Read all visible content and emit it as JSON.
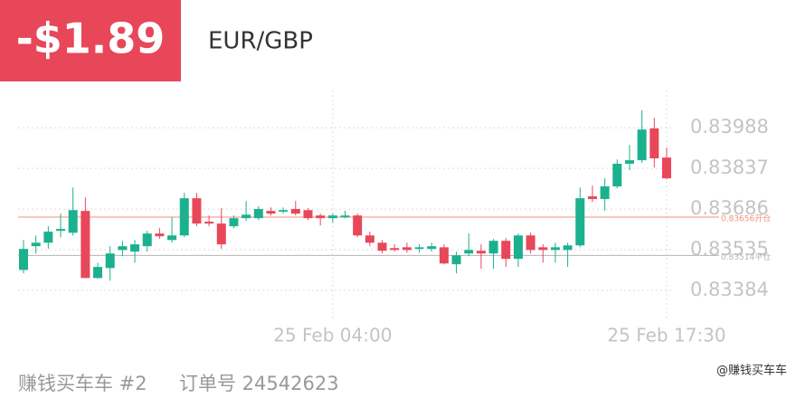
{
  "header": {
    "pnl": "-$1.89",
    "symbol": "EUR/GBP"
  },
  "chart_data": {
    "type": "candlestick",
    "categories": [
      null,
      null,
      null,
      null,
      null,
      null,
      null,
      null,
      null,
      null,
      null,
      null,
      null,
      null,
      null,
      null,
      null,
      null,
      null,
      null,
      null,
      null,
      null,
      null,
      null,
      "25 Feb 04:00",
      null,
      null,
      null,
      null,
      null,
      null,
      null,
      null,
      null,
      null,
      null,
      null,
      null,
      null,
      null,
      null,
      null,
      null,
      null,
      null,
      null,
      null,
      null,
      null,
      null,
      null,
      "25 Feb 17:30"
    ],
    "open": [
      0.8346,
      0.83548,
      0.83561,
      0.83605,
      0.83598,
      0.83679,
      0.8343,
      0.83467,
      0.83534,
      0.83528,
      0.83548,
      0.83595,
      0.83571,
      0.83588,
      0.83726,
      0.83639,
      0.83632,
      0.83622,
      0.83652,
      0.83652,
      0.83679,
      0.83676,
      0.83686,
      0.83682,
      0.83662,
      0.83652,
      0.83655,
      0.83662,
      0.83588,
      0.83561,
      0.83541,
      0.83544,
      0.83538,
      0.83538,
      0.83544,
      0.83481,
      0.83521,
      0.83531,
      0.83521,
      0.83568,
      0.83501,
      0.83588,
      0.83544,
      0.83534,
      0.83534,
      0.83551,
      0.83733,
      0.83723,
      0.8377,
      0.83854,
      0.83867,
      0.83985,
      0.83877
    ],
    "high": [
      0.83571,
      0.83588,
      0.83622,
      0.83669,
      0.83766,
      0.83729,
      0.83487,
      0.83548,
      0.83568,
      0.83571,
      0.83605,
      0.83615,
      0.83655,
      0.83746,
      0.83746,
      0.83662,
      0.83689,
      0.83662,
      0.83716,
      0.83696,
      0.83692,
      0.83692,
      0.83716,
      0.83689,
      0.83669,
      0.83669,
      0.83679,
      0.83669,
      0.83602,
      0.83571,
      0.83555,
      0.83561,
      0.83555,
      0.83561,
      0.83555,
      0.83528,
      0.83595,
      0.83555,
      0.83575,
      0.83578,
      0.83595,
      0.83598,
      0.83555,
      0.83561,
      0.83561,
      0.83766,
      0.83773,
      0.838,
      0.8387,
      0.83924,
      0.84052,
      0.84025,
      0.83914
    ],
    "low": [
      0.83447,
      0.83521,
      0.83538,
      0.83581,
      0.83588,
      0.8343,
      0.83427,
      0.8342,
      0.83511,
      0.83487,
      0.83528,
      0.83575,
      0.83561,
      0.83581,
      0.83622,
      0.83622,
      0.83538,
      0.83615,
      0.83642,
      0.83645,
      0.83662,
      0.83669,
      0.83662,
      0.83645,
      0.83625,
      0.83635,
      0.83652,
      0.83581,
      0.83548,
      0.83521,
      0.83528,
      0.83524,
      0.83524,
      0.83528,
      0.83481,
      0.83447,
      0.83511,
      0.83464,
      0.83464,
      0.83471,
      0.83471,
      0.83521,
      0.83487,
      0.83487,
      0.83471,
      0.83544,
      0.83712,
      0.83679,
      0.83763,
      0.8383,
      0.83857,
      0.8384,
      0.83796
    ],
    "close": [
      0.83538,
      0.83561,
      0.83602,
      0.83612,
      0.83682,
      0.8343,
      0.83471,
      0.83521,
      0.83548,
      0.83555,
      0.83595,
      0.83585,
      0.83588,
      0.83726,
      0.83632,
      0.83632,
      0.83555,
      0.83652,
      0.83665,
      0.83686,
      0.83669,
      0.83682,
      0.83669,
      0.83652,
      0.83652,
      0.83662,
      0.83662,
      0.83588,
      0.83561,
      0.83531,
      0.83534,
      0.83534,
      0.83544,
      0.83548,
      0.83484,
      0.83514,
      0.83534,
      0.83521,
      0.83568,
      0.83501,
      0.83588,
      0.83534,
      0.83534,
      0.83544,
      0.83551,
      0.83726,
      0.83723,
      0.8377,
      0.83854,
      0.83867,
      0.83981,
      0.83874,
      0.838
    ],
    "up_color": "#1bb18e",
    "down_color": "#e8475a",
    "ylim": [
      0.8327,
      0.84126
    ],
    "yticks": [
      0.83384,
      0.83535,
      0.83686,
      0.83837,
      0.83988
    ],
    "grid": true,
    "reference_lines": [
      {
        "value": 0.83656,
        "label": "0.83656开仓",
        "color": "#f29278"
      },
      {
        "value": 0.83514,
        "label": "0.83514平仓",
        "color": "#b5b5b5"
      }
    ]
  },
  "footer": {
    "account": "赚钱买车车 #2",
    "order": "订单号 24542623",
    "watermark": "@赚钱买车车"
  }
}
